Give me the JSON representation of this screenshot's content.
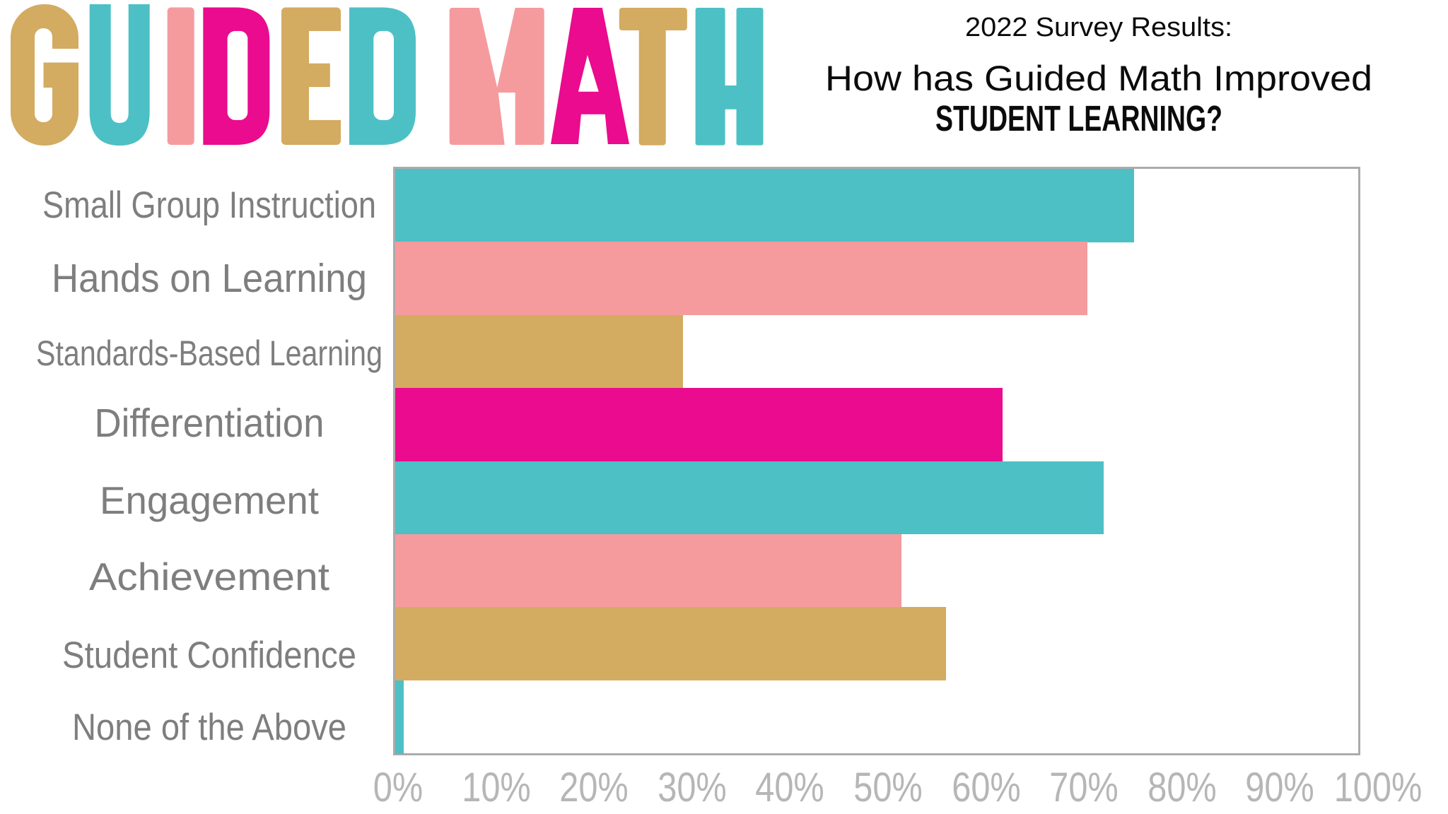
{
  "logo": {
    "text": "GUIDED MATH",
    "letters": [
      {
        "char": "G",
        "color": "#d3ab61"
      },
      {
        "char": "U",
        "color": "#4dc0c5"
      },
      {
        "char": "I",
        "color": "#f59b9e"
      },
      {
        "char": "D",
        "color": "#ea0b8e"
      },
      {
        "char": "E",
        "color": "#d3ab61"
      },
      {
        "char": "D",
        "color": "#4dc0c5"
      },
      {
        "char": "M",
        "color": "#f59b9e"
      },
      {
        "char": "A",
        "color": "#ea0b8e"
      },
      {
        "char": "T",
        "color": "#d3ab61"
      },
      {
        "char": "H",
        "color": "#4dc0c5"
      }
    ]
  },
  "title": {
    "line1": "2022 Survey Results:",
    "line2": "How has Guided Math Improved",
    "line3": "STUDENT LEARNING?"
  },
  "chart_data": {
    "type": "bar",
    "orientation": "horizontal",
    "title": "2022 Survey Results: How has Guided Math Improved STUDENT LEARNING?",
    "xlabel": "",
    "ylabel": "",
    "categories": [
      "Small Group Instruction",
      "Hands on Learning",
      "Standards-Based Learning",
      "Differentiation",
      "Engagement",
      "Achievement",
      "Student Confidence",
      "None of the Above"
    ],
    "values": [
      76.7,
      71.9,
      29.9,
      63.1,
      73.6,
      52.6,
      57.2,
      0.9
    ],
    "unit": "%",
    "bar_colors": [
      "#4dc0c5",
      "#f59b9e",
      "#d3ab61",
      "#ea0b8e",
      "#4dc0c5",
      "#f59b9e",
      "#d3ab61",
      "#4dc0c5"
    ],
    "xlim": [
      0,
      100
    ],
    "x_ticks": [
      "0%",
      "10%",
      "20%",
      "30%",
      "40%",
      "50%",
      "60%",
      "70%",
      "80%",
      "90%",
      "100%"
    ],
    "grid": false,
    "legend": false,
    "plot_border_color": "#ababab",
    "category_label_color": "#7e7e7e",
    "tick_label_color": "#b6b6b6"
  }
}
